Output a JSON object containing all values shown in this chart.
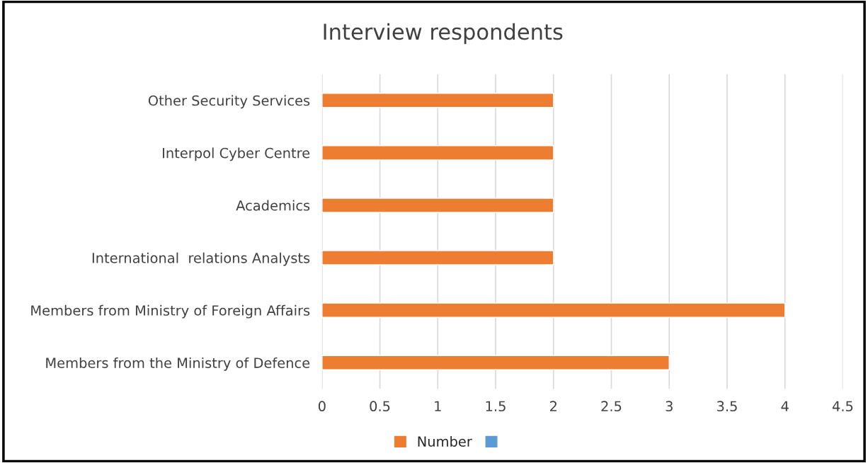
{
  "chart_data": {
    "type": "bar",
    "title": "Interview respondents",
    "orientation": "horizontal",
    "categories": [
      "Other Security Services",
      "Interpol Cyber Centre",
      "Academics",
      "International  relations Analysts",
      "Members from Ministry of Foreign Affairs",
      "Members from the Ministry of Defence"
    ],
    "series": [
      {
        "name": "Number",
        "color": "#ed7d31",
        "values": [
          2,
          2,
          2,
          2,
          4,
          3
        ]
      },
      {
        "color": "#5b9bd5",
        "values": [
          null,
          null,
          null,
          null,
          null,
          null
        ]
      }
    ],
    "xlim": [
      0,
      4.5
    ],
    "xticks": [
      0,
      0.5,
      1,
      1.5,
      2,
      2.5,
      3,
      3.5,
      4,
      4.5
    ],
    "grid": "x",
    "legend": "bottom"
  }
}
